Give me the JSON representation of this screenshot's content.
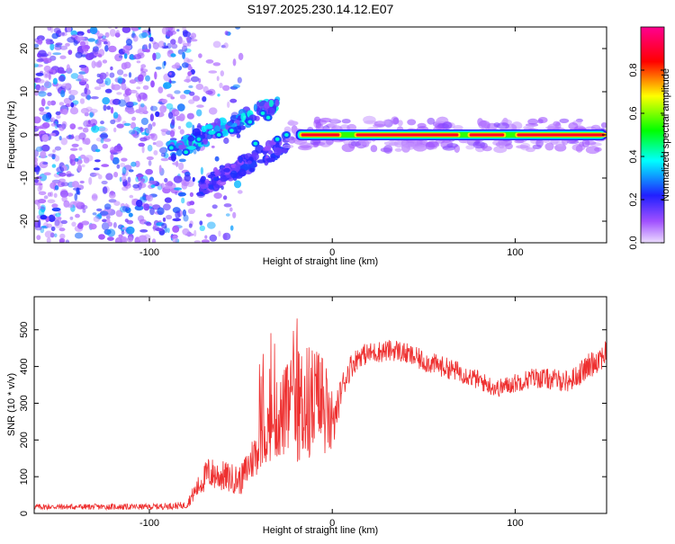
{
  "title": "S197.2025.230.14.12.E07",
  "colors": {
    "snr_line": "#ee3030",
    "ridge_low": "#2030ff",
    "scatter": "#7a28e6"
  },
  "chart_data": [
    {
      "type": "heatmap",
      "name": "spectrogram",
      "title": "S197.2025.230.14.12.E07",
      "xlabel": "Height of straight line (km)",
      "ylabel": "Frequency (Hz)",
      "xlim": [
        -163,
        150
      ],
      "ylim": [
        -25,
        25
      ],
      "xticks": [
        -100,
        0,
        100
      ],
      "yticks": [
        -20,
        -10,
        0,
        10,
        20
      ],
      "colorbar": {
        "label": "Normalized spectral amplitude",
        "range": [
          0.0,
          1.0
        ],
        "ticks": [
          0.0,
          0.2,
          0.4,
          0.6,
          0.8
        ],
        "tick_labels": [
          "0.0",
          "0.2",
          "0.4",
          "0.6",
          "0.8"
        ],
        "colormap": [
          "#e6ccff",
          "#8000ff",
          "#0000ff",
          "#00ffff",
          "#00ff00",
          "#ffff00",
          "#ff0000",
          "#ff0080"
        ]
      },
      "ridge": {
        "x_start": -20,
        "x_end": 150,
        "frequency": 0,
        "hot_segments": [
          [
            -18,
            5
          ],
          [
            12,
            70
          ],
          [
            74,
            95
          ],
          [
            100,
            150
          ]
        ],
        "amplitude": 0.95
      },
      "branches": [
        {
          "x": [
            -90,
            -30
          ],
          "f": [
            -4,
            7
          ]
        },
        {
          "x": [
            -72,
            -25
          ],
          "f": [
            -12,
            -2
          ]
        }
      ],
      "noise_region": {
        "x": [
          -163,
          -80
        ],
        "f": [
          -25,
          25
        ],
        "amplitude_range": [
          0.05,
          0.3
        ]
      }
    },
    {
      "type": "line",
      "name": "snr",
      "xlabel": "Height of straight line (km)",
      "ylabel": "SNR (10 * v/v)",
      "xlim": [
        -163,
        150
      ],
      "ylim": [
        0,
        590
      ],
      "xticks": [
        -100,
        0,
        100
      ],
      "yticks": [
        0,
        100,
        200,
        300,
        400,
        500
      ],
      "envelope": {
        "x": [
          -163,
          -100,
          -80,
          -75,
          -68,
          -50,
          -35,
          -25,
          -15,
          -5,
          0,
          5,
          10,
          15,
          25,
          35,
          50,
          70,
          90,
          110,
          130,
          150
        ],
        "y": [
          18,
          18,
          22,
          60,
          110,
          90,
          230,
          280,
          300,
          300,
          220,
          340,
          400,
          430,
          440,
          445,
          415,
          385,
          340,
          370,
          360,
          440
        ],
        "noise": [
          8,
          8,
          10,
          25,
          45,
          40,
          90,
          130,
          170,
          150,
          60,
          40,
          35,
          30,
          30,
          30,
          30,
          28,
          25,
          28,
          30,
          40
        ]
      }
    }
  ]
}
